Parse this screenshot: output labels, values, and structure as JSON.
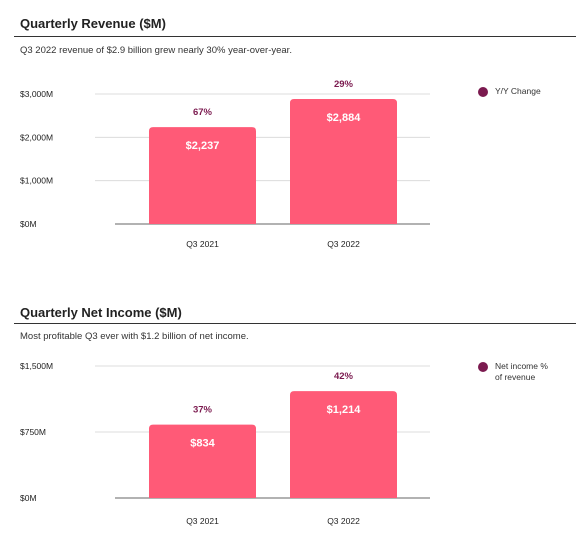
{
  "colors": {
    "bar": "#ff5a77",
    "change": "#7b1a4f",
    "grid": "#dcdcdc",
    "baseline": "#666666",
    "text": "#222222"
  },
  "chart_data": [
    {
      "type": "bar",
      "title": "Quarterly Revenue ($M)",
      "subtitle": "Q3 2022 revenue of $2.9 billion grew nearly 30% year-over-year.",
      "categories": [
        "Q3 2021",
        "Q3 2022"
      ],
      "series": [
        {
          "values": [
            2237,
            2884
          ],
          "labels": [
            "$2,237",
            "$2,884"
          ]
        }
      ],
      "annotations": {
        "name": "Y/Y Change",
        "values": [
          "67%",
          "29%"
        ]
      },
      "yticks": [
        0,
        1000,
        2000,
        3000
      ],
      "ytick_labels": [
        "$0M",
        "$1,000M",
        "$2,000M",
        "$3,000M"
      ],
      "ylim": [
        0,
        3000
      ],
      "grid": true,
      "legend_position": "top-right",
      "legend": [
        "Y/Y Change"
      ]
    },
    {
      "type": "bar",
      "title": "Quarterly Net Income ($M)",
      "subtitle": "Most profitable Q3 ever with $1.2 billion of net income.",
      "categories": [
        "Q3 2021",
        "Q3 2022"
      ],
      "series": [
        {
          "values": [
            834,
            1214
          ],
          "labels": [
            "$834",
            "$1,214"
          ]
        }
      ],
      "annotations": {
        "name": "Net income % of revenue",
        "values": [
          "37%",
          "42%"
        ]
      },
      "yticks": [
        0,
        750,
        1500
      ],
      "ytick_labels": [
        "$0M",
        "$750M",
        "$1,500M"
      ],
      "ylim": [
        0,
        1500
      ],
      "grid": true,
      "legend_position": "top-right",
      "legend": [
        "Net income % of revenue"
      ]
    }
  ]
}
